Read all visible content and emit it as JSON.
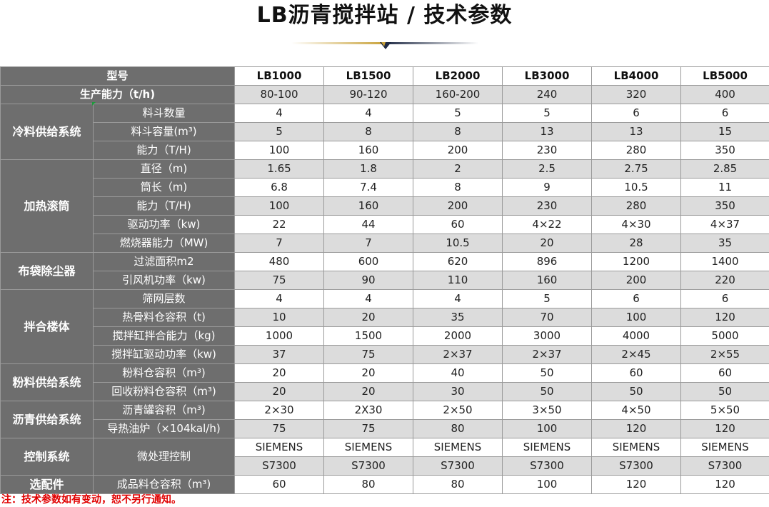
{
  "title": "LB沥青搅拌站 / 技术参数",
  "header": {
    "label": "型号",
    "models": [
      "LB1000",
      "LB1500",
      "LB2000",
      "LB3000",
      "LB4000",
      "LB5000"
    ]
  },
  "capacity": {
    "label": "生产能力（t/h)",
    "values": [
      "80-100",
      "90-120",
      "160-200",
      "240",
      "320",
      "400"
    ]
  },
  "groups": [
    {
      "name": "冷料供给系统",
      "rows": [
        {
          "label": "料斗数量",
          "values": [
            "4",
            "4",
            "5",
            "5",
            "6",
            "6"
          ]
        },
        {
          "label": "料斗容量(m³)",
          "values": [
            "5",
            "8",
            "8",
            "13",
            "13",
            "15"
          ]
        },
        {
          "label": "能力（T/H)",
          "values": [
            "100",
            "160",
            "200",
            "230",
            "280",
            "350"
          ]
        }
      ]
    },
    {
      "name": "加热滚筒",
      "rows": [
        {
          "label": "直径（m)",
          "values": [
            "1.65",
            "1.8",
            "2",
            "2.5",
            "2.75",
            "2.85"
          ]
        },
        {
          "label": "筒长（m)",
          "values": [
            "6.8",
            "7.4",
            "8",
            "9",
            "10.5",
            "11"
          ]
        },
        {
          "label": "能力（T/H)",
          "values": [
            "100",
            "160",
            "200",
            "230",
            "280",
            "350"
          ]
        },
        {
          "label": "驱动功率（kw)",
          "values": [
            "22",
            "44",
            "60",
            "4×22",
            "4×30",
            "4×37"
          ]
        },
        {
          "label": "燃烧器能力（MW)",
          "values": [
            "7",
            "7",
            "10.5",
            "20",
            "28",
            "35"
          ]
        }
      ]
    },
    {
      "name": "布袋除尘器",
      "rows": [
        {
          "label": "过滤面积m2",
          "values": [
            "480",
            "600",
            "620",
            "896",
            "1200",
            "1400"
          ]
        },
        {
          "label": "引风机功率（kw)",
          "values": [
            "75",
            "90",
            "110",
            "160",
            "200",
            "220"
          ]
        }
      ]
    },
    {
      "name": "拌合楼体",
      "rows": [
        {
          "label": "筛网层数",
          "values": [
            "4",
            "4",
            "4",
            "5",
            "6",
            "6"
          ]
        },
        {
          "label": "热骨料仓容积（t)",
          "values": [
            "10",
            "20",
            "35",
            "70",
            "100",
            "120"
          ]
        },
        {
          "label": "搅拌缸拌合能力（kg)",
          "values": [
            "1000",
            "1500",
            "2000",
            "3000",
            "4000",
            "5000"
          ]
        },
        {
          "label": "搅拌缸驱动功率（kw)",
          "values": [
            "37",
            "75",
            "2×37",
            "2×37",
            "2×45",
            "2×55"
          ]
        }
      ]
    },
    {
      "name": "粉料供给系统",
      "rows": [
        {
          "label": "粉料仓容积（m³)",
          "values": [
            "20",
            "20",
            "40",
            "50",
            "60",
            "60"
          ]
        },
        {
          "label": "回收粉料仓容积（m³)",
          "values": [
            "20",
            "20",
            "30",
            "50",
            "50",
            "50"
          ]
        }
      ]
    },
    {
      "name": "沥青供给系统",
      "rows": [
        {
          "label": "沥青罐容积（m³)",
          "values": [
            "2×30",
            "2X30",
            "2×50",
            "3×50",
            "4×50",
            "5×50"
          ]
        },
        {
          "label": "导热油炉（×104kal/h)",
          "values": [
            "75",
            "75",
            "80",
            "100",
            "120",
            "120"
          ]
        }
      ]
    }
  ],
  "control": {
    "name": "控制系统",
    "label": "微处理控制",
    "line1": [
      "SIEMENS",
      "SIEMENS",
      "SIEMENS",
      "SIEMENS",
      "SIEMENS",
      "SIEMENS"
    ],
    "line2": [
      "S7300",
      "S7300",
      "S7300",
      "S7300",
      "S7300",
      "S7300"
    ]
  },
  "optional": {
    "name": "选配件",
    "label": "成品料仓容积（m³)",
    "values": [
      "60",
      "80",
      "80",
      "100",
      "120",
      "120"
    ]
  },
  "note": "注：技术参数如有变动，恕不另行通知。",
  "colors": {
    "header_bg": "#6e6e6e",
    "shade_bg": "#dcdcdc",
    "note": "#e00000",
    "deco_gold": "#c9a23a",
    "deco_navy": "#1f2a44"
  }
}
